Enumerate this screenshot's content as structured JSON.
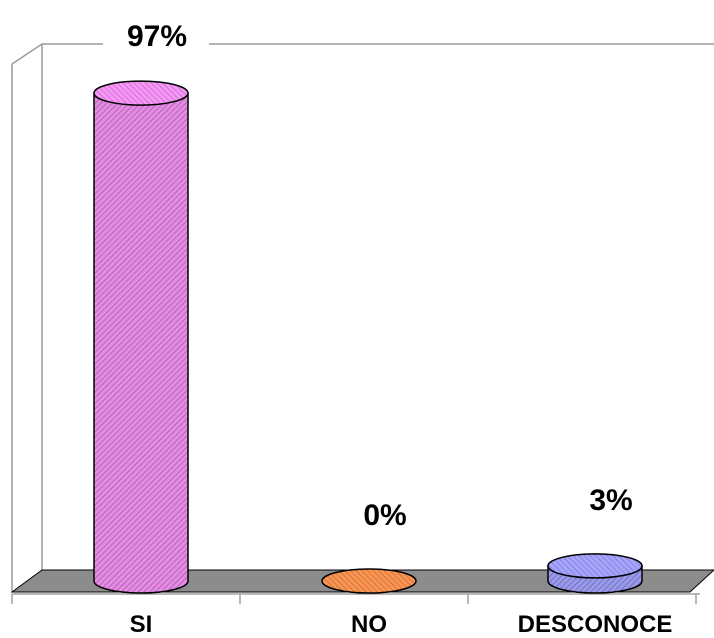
{
  "chart_data": {
    "type": "bar",
    "style": "3d-cylinder",
    "categories": [
      "SI",
      "NO",
      "DESCONOCE"
    ],
    "values": [
      97,
      0,
      3
    ],
    "value_labels": [
      "97%",
      "0%",
      "3%"
    ],
    "unit": "%",
    "ylim": [
      0,
      100
    ],
    "grid": false,
    "legend": "none",
    "title": "",
    "xlabel": "",
    "ylabel": "",
    "colors": [
      "#e68ae6",
      "#e8894a",
      "#9999ee"
    ],
    "pattern": "diagonal-hatch"
  }
}
